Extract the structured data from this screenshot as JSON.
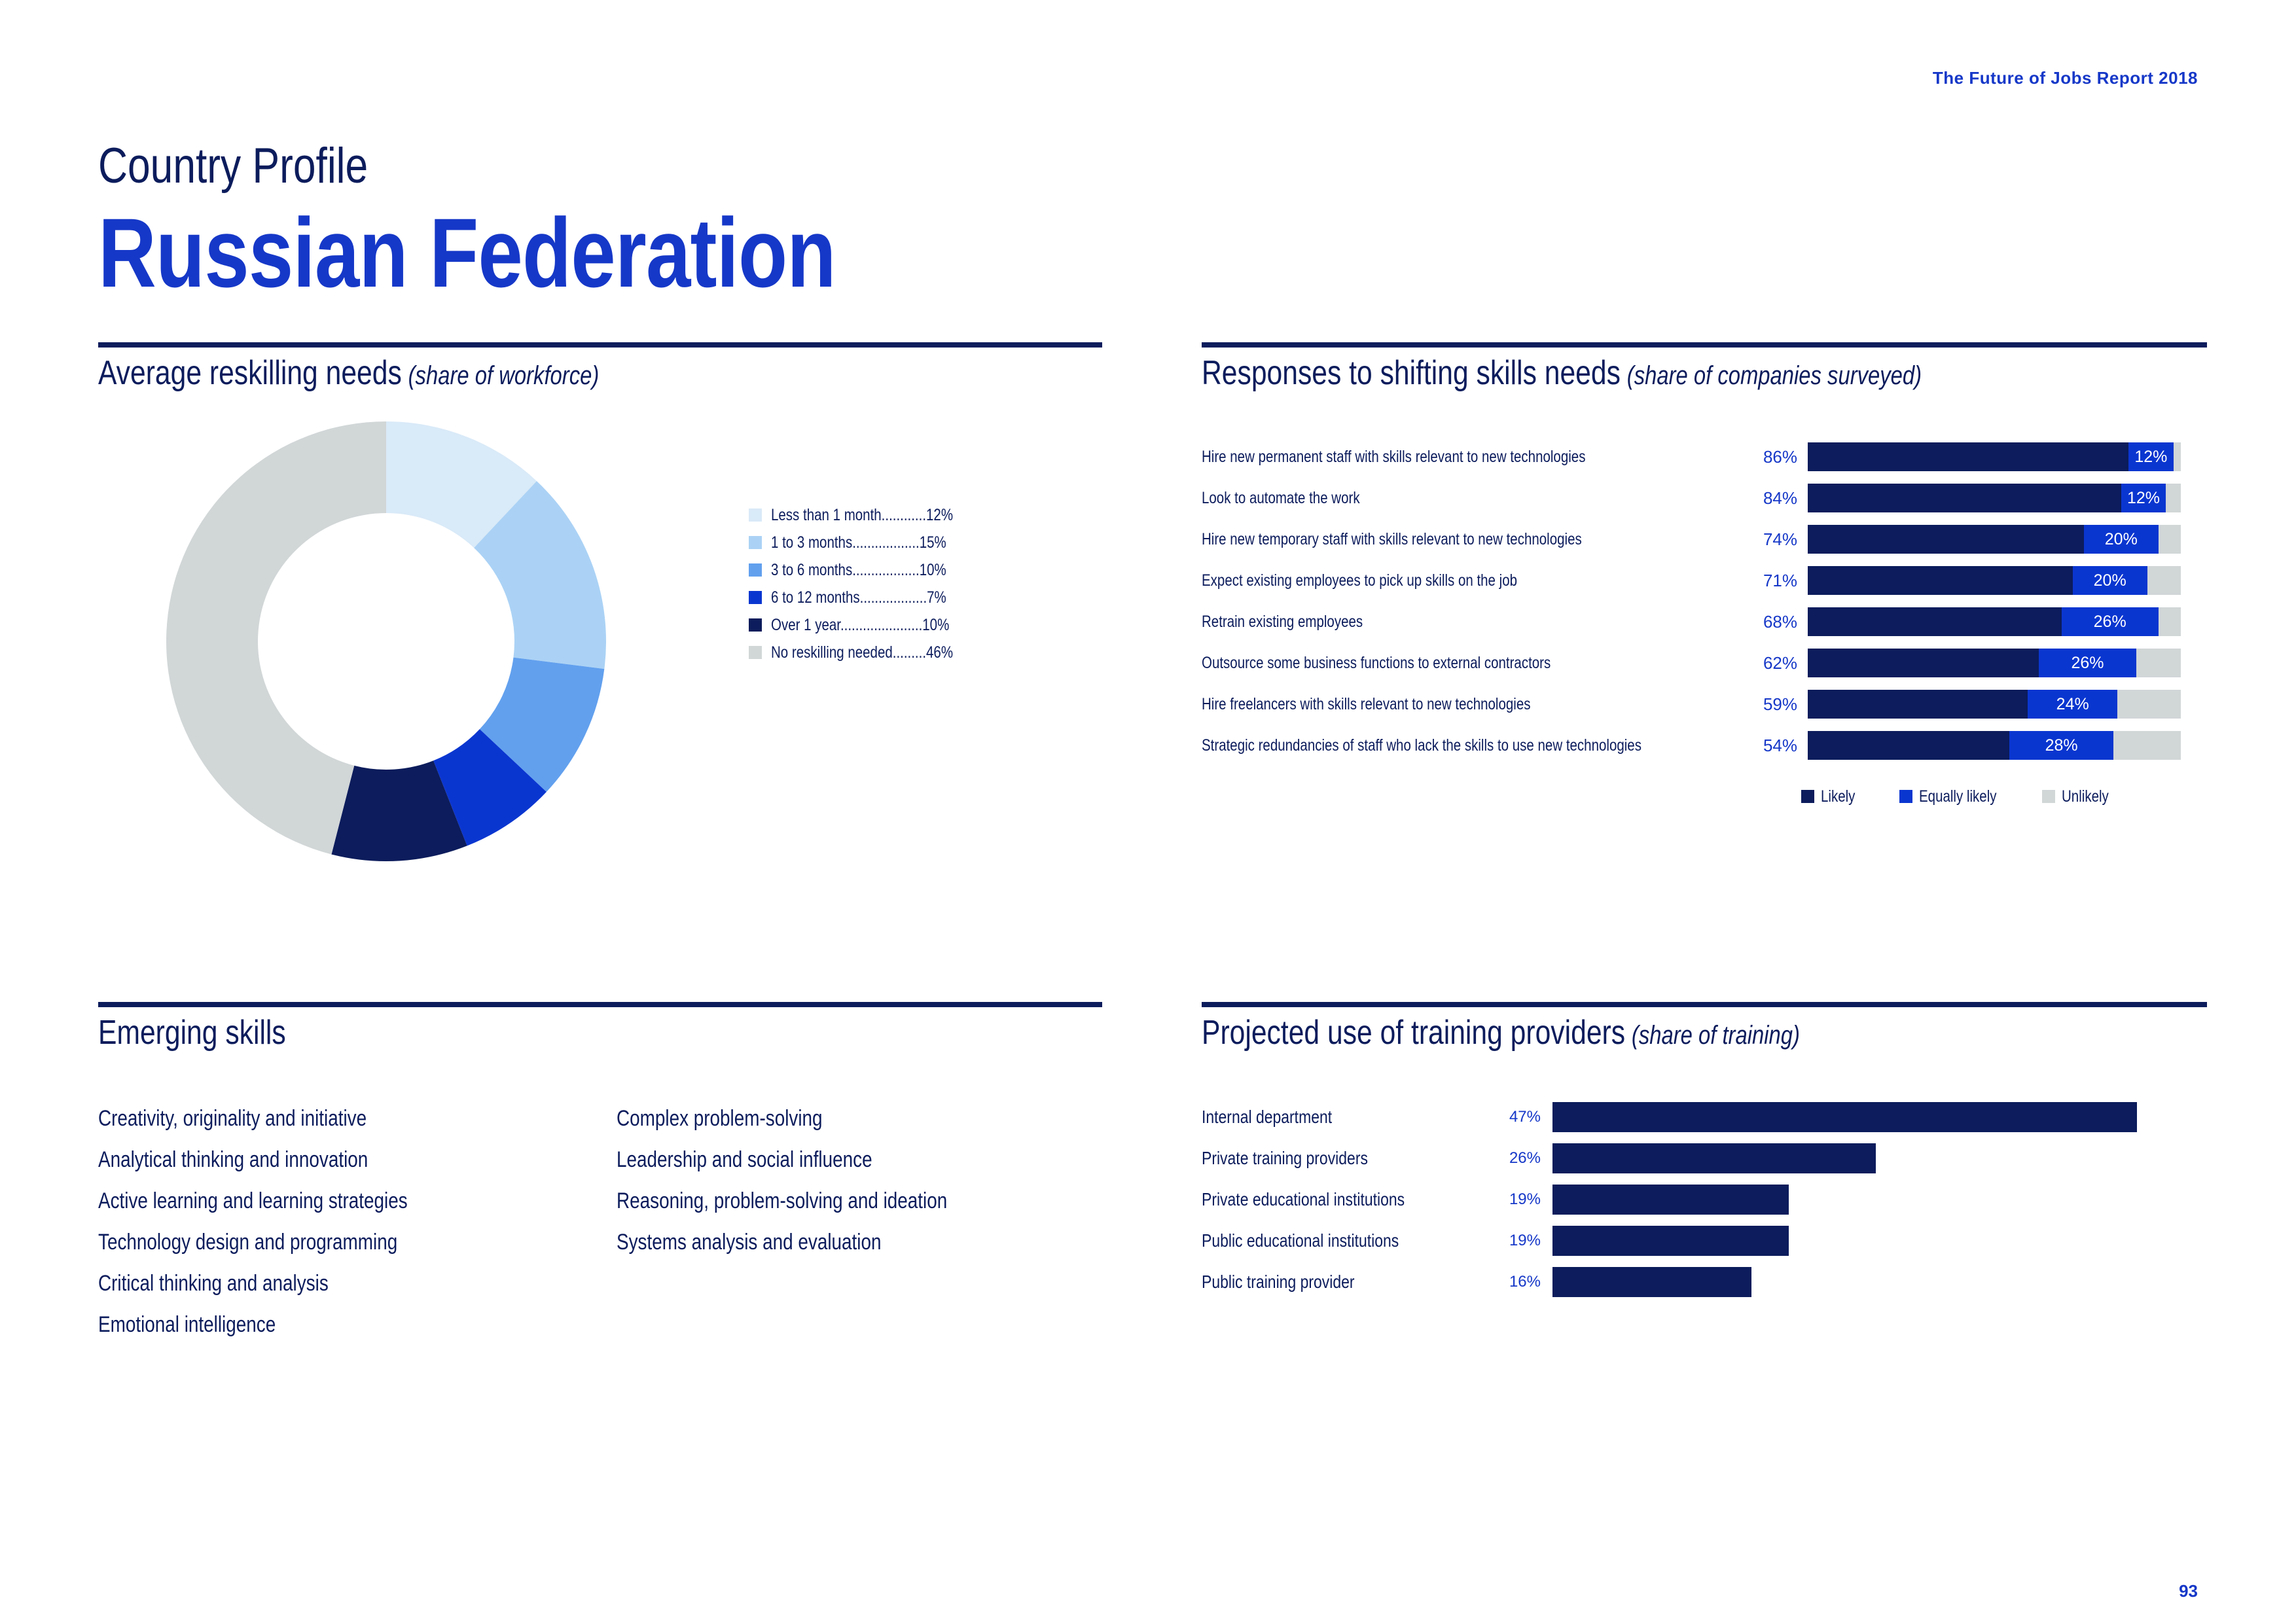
{
  "header": {
    "report_title": "The Future of Jobs Report 2018",
    "page_number": "93"
  },
  "title": {
    "eyebrow": "Country Profile",
    "country": "Russian Federation"
  },
  "colors": {
    "navy": "#0c1c5c",
    "blue": "#1638c8",
    "mid_blue": "#62a0ee",
    "light_blue": "#abd2f5",
    "pale_blue": "#d9eaf8",
    "grey": "#d1d6d7"
  },
  "reskilling": {
    "title": "Average reskilling needs",
    "subtitle": "(share of workforce)",
    "legend": [
      {
        "label": "Less than 1 month",
        "dots": "............",
        "value_text": "12%",
        "color": "#d9eaf8"
      },
      {
        "label": "1 to 3 months",
        "dots": "..................",
        "value_text": "15%",
        "color": "#abd2f5"
      },
      {
        "label": "3 to 6 months",
        "dots": "..................",
        "value_text": "10%",
        "color": "#62a0ee"
      },
      {
        "label": "6 to 12 months",
        "dots": "..................",
        "value_text": "7%",
        "color": "#0a36d0"
      },
      {
        "label": "Over 1 year",
        "dots": "......................",
        "value_text": "10%",
        "color": "#0c1c5c"
      },
      {
        "label": "No reskilling needed",
        "dots": ".........",
        "value_text": "46%",
        "color": "#d1d6d7"
      }
    ]
  },
  "responses": {
    "title": "Responses to shifting skills needs",
    "subtitle": "(share of companies surveyed)",
    "legend": [
      {
        "label": "Likely",
        "color": "#0c1c5c"
      },
      {
        "label": "Equally likely",
        "color": "#0a36d0"
      },
      {
        "label": "Unlikely",
        "color": "#d1d6d7"
      }
    ],
    "rows": [
      {
        "label": "Hire new permanent staff with skills relevant to new technologies",
        "likely_text": "86%",
        "equal_text": "12%"
      },
      {
        "label": "Look to automate the work",
        "likely_text": "84%",
        "equal_text": "12%"
      },
      {
        "label": "Hire new temporary staff with skills relevant to new technologies",
        "likely_text": "74%",
        "equal_text": "20%"
      },
      {
        "label": "Expect existing employees to pick up skills on the job",
        "likely_text": "71%",
        "equal_text": "20%"
      },
      {
        "label": "Retrain existing employees",
        "likely_text": "68%",
        "equal_text": "26%"
      },
      {
        "label": "Outsource some business functions to external contractors",
        "likely_text": "62%",
        "equal_text": "26%"
      },
      {
        "label": "Hire freelancers with skills relevant to new technologies",
        "likely_text": "59%",
        "equal_text": "24%"
      },
      {
        "label": "Strategic redundancies of staff who lack the skills to use new technologies",
        "likely_text": "54%",
        "equal_text": "28%"
      }
    ]
  },
  "emerging": {
    "title": "Emerging skills",
    "col1": [
      "Creativity, originality and initiative",
      "Analytical thinking and innovation",
      "Active learning and learning strategies",
      "Technology design and programming",
      "Critical thinking and analysis",
      "Emotional intelligence"
    ],
    "col2": [
      "Complex problem-solving",
      "Leadership and social influence",
      "Reasoning, problem-solving and ideation",
      "Systems analysis and evaluation"
    ]
  },
  "training": {
    "title": "Projected use of training providers",
    "subtitle": "(share of training)",
    "rows": [
      {
        "label": "Internal department",
        "value_text": "47%"
      },
      {
        "label": "Private training providers",
        "value_text": "26%"
      },
      {
        "label": "Private educational institutions",
        "value_text": "19%"
      },
      {
        "label": "Public educational institutions",
        "value_text": "19%"
      },
      {
        "label": "Public training provider",
        "value_text": "16%"
      }
    ]
  },
  "chart_data": [
    {
      "type": "pie",
      "title": "Average reskilling needs (share of workforce)",
      "categories": [
        "Less than 1 month",
        "1 to 3 months",
        "3 to 6 months",
        "6 to 12 months",
        "Over 1 year",
        "No reskilling needed"
      ],
      "values": [
        12,
        15,
        10,
        7,
        10,
        46
      ],
      "colors": [
        "#d9eaf8",
        "#abd2f5",
        "#62a0ee",
        "#0a36d0",
        "#0c1c5c",
        "#d1d6d7"
      ],
      "donut": true
    },
    {
      "type": "bar",
      "orientation": "horizontal",
      "stacked": true,
      "title": "Responses to shifting skills needs (share of companies surveyed)",
      "categories": [
        "Hire new permanent staff with skills relevant to new technologies",
        "Look to automate the work",
        "Hire new temporary staff with skills relevant to new technologies",
        "Expect existing employees to pick up skills on the job",
        "Retrain existing employees",
        "Outsource some business functions to external contractors",
        "Hire freelancers with skills relevant to new technologies",
        "Strategic redundancies of staff who lack the skills to use new technologies"
      ],
      "series": [
        {
          "name": "Likely",
          "values": [
            86,
            84,
            74,
            71,
            68,
            62,
            59,
            54
          ]
        },
        {
          "name": "Equally likely",
          "values": [
            12,
            12,
            20,
            20,
            26,
            26,
            24,
            28
          ]
        },
        {
          "name": "Unlikely",
          "values": [
            2,
            4,
            6,
            9,
            6,
            12,
            17,
            18
          ]
        }
      ],
      "xlim": [
        0,
        100
      ]
    },
    {
      "type": "bar",
      "orientation": "horizontal",
      "title": "Projected use of training providers (share of training)",
      "categories": [
        "Internal department",
        "Private training providers",
        "Private educational institutions",
        "Public educational institutions",
        "Public training provider"
      ],
      "values": [
        47,
        26,
        19,
        19,
        16
      ]
    }
  ]
}
